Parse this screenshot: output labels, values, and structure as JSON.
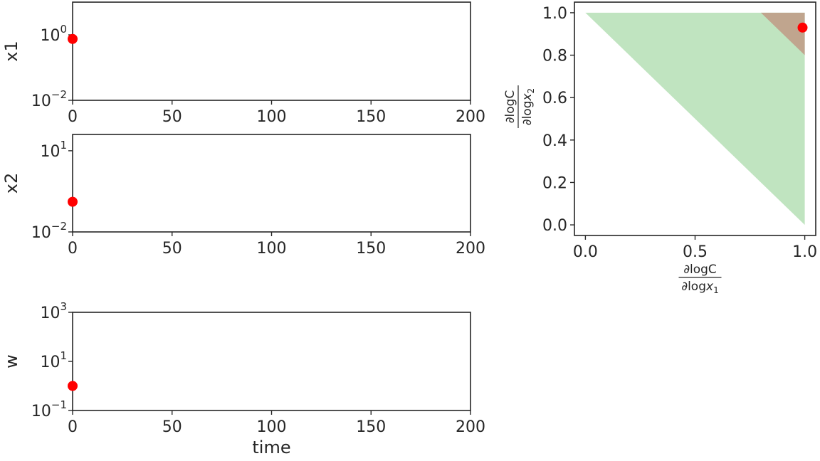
{
  "colors": {
    "axes": "#262626",
    "marker": "#ff0000",
    "region_green": "#c0e4c0",
    "region_brown": "#c0a58e"
  },
  "chart_data": [
    {
      "type": "scatter",
      "ylabel": "x1",
      "xlabel": "",
      "yscale": "log",
      "xlim": [
        0,
        200
      ],
      "ylim": [
        0.01,
        10
      ],
      "xticks": [
        "0",
        "50",
        "100",
        "150",
        "200"
      ],
      "yticks": [
        {
          "base": "10",
          "exp": "0",
          "value": 1
        },
        {
          "base": "10",
          "exp": "−2",
          "value": 0.01
        }
      ],
      "points": [
        {
          "x": 0,
          "y": 0.75
        }
      ],
      "grid": false
    },
    {
      "type": "scatter",
      "ylabel": "x2",
      "xlabel": "",
      "yscale": "log",
      "xlim": [
        0,
        200
      ],
      "ylim": [
        0.01,
        40
      ],
      "xticks": [
        "0",
        "50",
        "100",
        "150",
        "200"
      ],
      "yticks": [
        {
          "base": "10",
          "exp": "1",
          "value": 10
        },
        {
          "base": "10",
          "exp": "−2",
          "value": 0.01
        }
      ],
      "points": [
        {
          "x": 0,
          "y": 0.13
        }
      ],
      "grid": false
    },
    {
      "type": "scatter",
      "ylabel": "w",
      "xlabel": "time",
      "yscale": "log",
      "xlim": [
        0,
        200
      ],
      "ylim": [
        0.1,
        1000
      ],
      "xticks": [
        "0",
        "50",
        "100",
        "150",
        "200"
      ],
      "yticks": [
        {
          "base": "10",
          "exp": "3",
          "value": 1000
        },
        {
          "base": "10",
          "exp": "1",
          "value": 10
        },
        {
          "base": "10",
          "exp": "−1",
          "value": 0.1
        }
      ],
      "points": [
        {
          "x": 0,
          "y": 1
        }
      ],
      "grid": false
    },
    {
      "type": "area",
      "xlabel": {
        "num": "∂logC",
        "den_main": "∂log",
        "den_var": "x",
        "den_sub": "1"
      },
      "ylabel": {
        "num": "∂logC",
        "den_main": "∂log",
        "den_var": "x",
        "den_sub": "2"
      },
      "xlim": [
        -0.05,
        1.05
      ],
      "ylim": [
        -0.05,
        1.05
      ],
      "xticks": [
        {
          "label": "0.0",
          "value": 0
        },
        {
          "label": "0.5",
          "value": 0.5
        },
        {
          "label": "1.0",
          "value": 1
        }
      ],
      "yticks": [
        {
          "label": "0.0",
          "value": 0
        },
        {
          "label": "0.2",
          "value": 0.2
        },
        {
          "label": "0.4",
          "value": 0.4
        },
        {
          "label": "0.6",
          "value": 0.6
        },
        {
          "label": "0.8",
          "value": 0.8
        },
        {
          "label": "1.0",
          "value": 1
        }
      ],
      "regions": [
        {
          "color": "region_green",
          "vertices": [
            [
              0,
              1
            ],
            [
              1,
              1
            ],
            [
              1,
              0
            ]
          ]
        },
        {
          "color": "region_brown",
          "vertices": [
            [
              0.8,
              1
            ],
            [
              1,
              1
            ],
            [
              1,
              0.8
            ]
          ]
        }
      ],
      "points": [
        {
          "x": 0.99,
          "y": 0.93
        }
      ],
      "grid": false
    }
  ]
}
